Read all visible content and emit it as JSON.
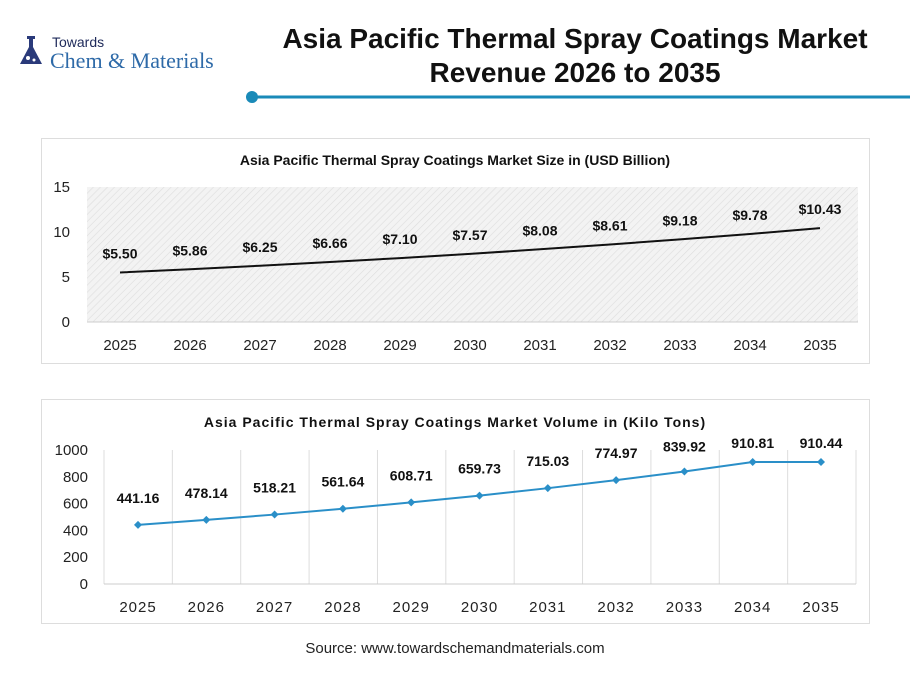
{
  "logo": {
    "line1": "Towards",
    "line2": "Chem & Materials"
  },
  "title": "Asia Pacific Thermal Spray Coatings Market Revenue 2026 to 2035",
  "accent": "#1a8ab8",
  "chart_data": [
    {
      "type": "line",
      "title": "Asia Pacific Thermal Spray Coatings Market Size in (USD Billion)",
      "categories": [
        "2025",
        "2026",
        "2027",
        "2028",
        "2029",
        "2030",
        "2031",
        "2032",
        "2033",
        "2034",
        "2035"
      ],
      "values": [
        5.5,
        5.86,
        6.25,
        6.66,
        7.1,
        7.57,
        8.08,
        8.61,
        9.18,
        9.78,
        10.43
      ],
      "data_labels": [
        "$5.50",
        "$5.86",
        "$6.25",
        "$6.66",
        "$7.10",
        "$7.57",
        "$8.08",
        "$8.61",
        "$9.18",
        "$9.78",
        "$10.43"
      ],
      "yticks": [
        "0",
        "5",
        "10",
        "15"
      ],
      "ylim": [
        0,
        15
      ],
      "line_color": "#111111",
      "background": "hatched"
    },
    {
      "type": "line",
      "title": "Asia Pacific Thermal Spray Coatings Market Volume in (Kilo Tons)",
      "categories": [
        "2025",
        "2026",
        "2027",
        "2028",
        "2029",
        "2030",
        "2031",
        "2032",
        "2033",
        "2034",
        "2035"
      ],
      "values": [
        441.16,
        478.14,
        518.21,
        561.64,
        608.71,
        659.73,
        715.03,
        774.97,
        839.92,
        910.81,
        910.44
      ],
      "data_labels": [
        "441.16",
        "478.14",
        "518.21",
        "561.64",
        "608.71",
        "659.73",
        "715.03",
        "774.97",
        "839.92",
        "910.81",
        "910.44"
      ],
      "yticks": [
        "0",
        "200",
        "400",
        "600",
        "800",
        "1000"
      ],
      "ylim": [
        0,
        1000
      ],
      "line_color": "#2a8fc8",
      "markers": "diamond"
    }
  ],
  "source": "Source: www.towardschemandmaterials.com"
}
